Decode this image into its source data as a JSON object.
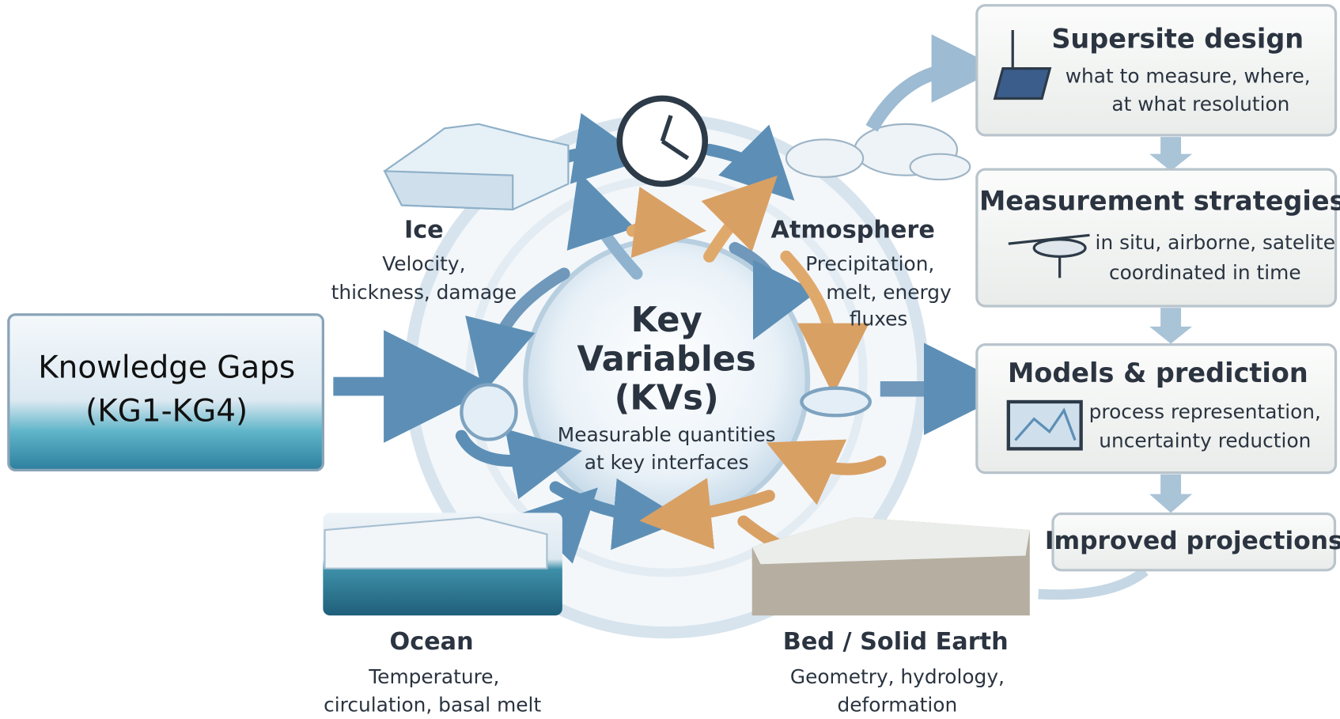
{
  "center": {
    "title_lines": [
      "Key",
      "Variables",
      "(KVs)"
    ],
    "subtitle_lines": [
      "Measurable quantities",
      "at key interfaces"
    ]
  },
  "knowledge_gaps": {
    "lines": [
      "Knowledge Gaps",
      "(KG1-KG4)"
    ]
  },
  "nodes": [
    {
      "label": "Ice",
      "lines": [
        "Velocity,",
        "thickness, damage"
      ]
    },
    {
      "label": "Atmosphere",
      "lines": [
        "Precipitation,",
        "melt, energy",
        "fluxes"
      ]
    },
    {
      "label": "Ocean",
      "lines": [
        "Temperature,",
        "circulation, basal melt"
      ]
    },
    {
      "label": "Bed / Solid Earth",
      "lines": [
        "Geometry, hydrology,",
        "deformation"
      ]
    }
  ],
  "steps": [
    {
      "title": "Supersite design",
      "lines": [
        "what to measure, where,",
        "at what resolution"
      ]
    },
    {
      "title": "Measurement strategies",
      "lines": [
        "in situ, airborne, satelite",
        "coordinated in time"
      ]
    },
    {
      "title": "Models & prediction",
      "lines": [
        "process representation,",
        "uncertainty reduction"
      ]
    },
    {
      "title": "Improved projections"
    }
  ]
}
